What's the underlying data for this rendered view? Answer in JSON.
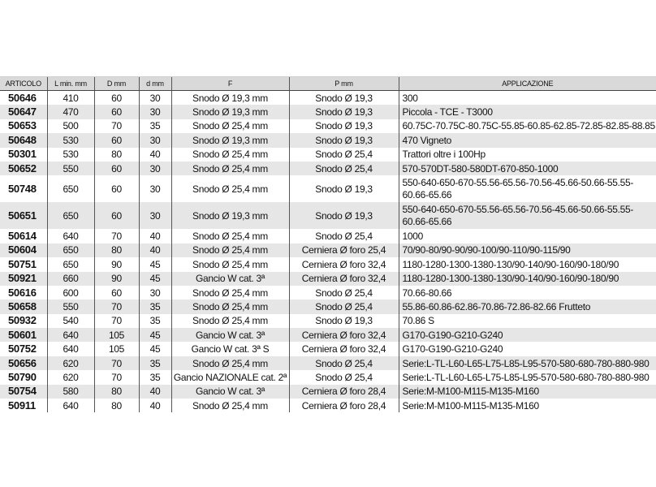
{
  "headers": [
    "ARTICOLO",
    "L min. mm",
    "D mm",
    "d mm",
    "F",
    "P mm",
    "APPLICAZIONE"
  ],
  "rows": [
    [
      "50646",
      "410",
      "60",
      "30",
      "Snodo Ø 19,3 mm",
      "Snodo Ø 19,3",
      "300"
    ],
    [
      "50647",
      "470",
      "60",
      "30",
      "Snodo Ø 19,3 mm",
      "Snodo Ø 19,3",
      "Piccola - TCE - T3000"
    ],
    [
      "50653",
      "500",
      "70",
      "35",
      "Snodo Ø 25,4 mm",
      "Snodo Ø 19,3",
      "60.75C-70.75C-80.75C-55.85-60.85-62.85-72.85-82.85-88.85"
    ],
    [
      "50648",
      "530",
      "60",
      "30",
      "Snodo Ø 19,3 mm",
      "Snodo Ø 19,3",
      "470 Vigneto"
    ],
    [
      "50301",
      "530",
      "80",
      "40",
      "Snodo Ø 25,4 mm",
      "Snodo Ø 25,4",
      "Trattori oltre i 100Hp"
    ],
    [
      "50652",
      "550",
      "60",
      "30",
      "Snodo Ø 25,4 mm",
      "Snodo Ø 25,4",
      "570-570DT-580-580DT-670-850-1000"
    ],
    [
      "50748",
      "650",
      "60",
      "30",
      "Snodo Ø 25,4 mm",
      "Snodo Ø 19,3",
      "550-640-650-670-55.56-65.56-70.56-45.66-50.66-55.55-60.66-65.66"
    ],
    [
      "50651",
      "650",
      "60",
      "30",
      "Snodo Ø 19,3 mm",
      "Snodo Ø 19,3",
      "550-640-650-670-55.56-65.56-70.56-45.66-50.66-55.55-60.66-65.66"
    ],
    [
      "50614",
      "640",
      "70",
      "40",
      "Snodo Ø 25,4 mm",
      "Snodo Ø 25,4",
      "1000"
    ],
    [
      "50604",
      "650",
      "80",
      "40",
      "Snodo Ø 25,4 mm",
      "Cerniera Ø foro 25,4",
      "70/90-80/90-90/90-100/90-110/90-115/90"
    ],
    [
      "50751",
      "650",
      "90",
      "45",
      "Snodo Ø 25,4 mm",
      "Cerniera Ø foro 32,4",
      "1180-1280-1300-1380-130/90-140/90-160/90-180/90"
    ],
    [
      "50921",
      "660",
      "90",
      "45",
      "Gancio W cat. 3ª",
      "Cerniera Ø foro 32,4",
      "1180-1280-1300-1380-130/90-140/90-160/90-180/90"
    ],
    [
      "50616",
      "600",
      "60",
      "30",
      "Snodo Ø 25,4 mm",
      "Snodo Ø 25,4",
      "70.66-80.66"
    ],
    [
      "50658",
      "550",
      "70",
      "35",
      "Snodo Ø 25,4 mm",
      "Snodo Ø 25,4",
      "55.86-60.86-62.86-70.86-72.86-82.66 Frutteto"
    ],
    [
      "50932",
      "540",
      "70",
      "35",
      "Snodo Ø 25,4 mm",
      "Snodo Ø 19,3",
      "70.86 S"
    ],
    [
      "50601",
      "640",
      "105",
      "45",
      "Gancio W cat. 3ª",
      "Cerniera Ø foro 32,4",
      "G170-G190-G210-G240"
    ],
    [
      "50752",
      "640",
      "105",
      "45",
      "Gancio W cat. 3ª S",
      "Cerniera Ø foro 32,4",
      "G170-G190-G210-G240"
    ],
    [
      "50656",
      "620",
      "70",
      "35",
      "Snodo Ø 25,4 mm",
      "Snodo Ø 25,4",
      "Serie:L-TL-L60-L65-L75-L85-L95-570-580-680-780-880-980"
    ],
    [
      "50790",
      "620",
      "70",
      "35",
      "Gancio NAZIONALE cat. 2ª",
      "Snodo Ø 25,4",
      "Serie:L-TL-L60-L65-L75-L85-L95-570-580-680-780-880-980"
    ],
    [
      "50754",
      "580",
      "80",
      "40",
      "Gancio W cat. 3ª",
      "Cerniera Ø foro 28,4",
      "Serie:M-M100-M115-M135-M160"
    ],
    [
      "50911",
      "640",
      "80",
      "40",
      "Snodo Ø 25,4 mm",
      "Cerniera Ø foro 28,4",
      "Serie:M-M100-M115-M135-M160"
    ]
  ],
  "colors": {
    "header_bg": "#d9d9d9",
    "stripe_bg": "#e6e6e6"
  }
}
